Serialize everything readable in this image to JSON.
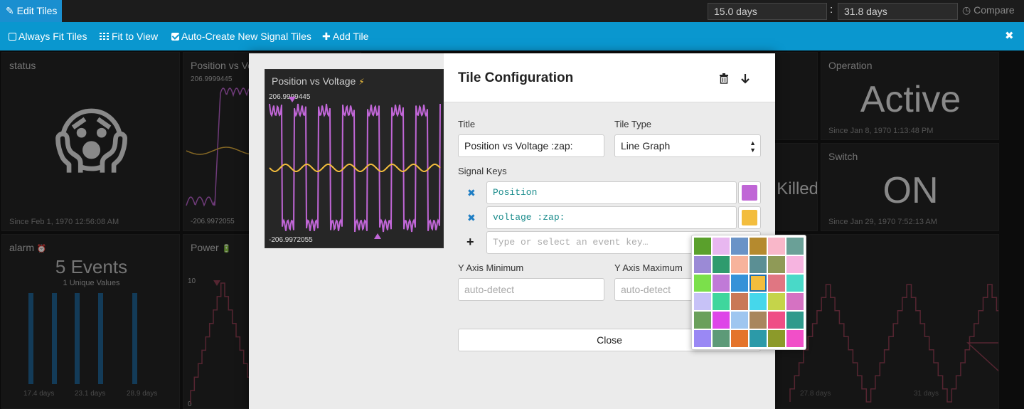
{
  "topbar": {
    "edit_tab_label": "Edit Tiles",
    "range_start": "15.0 days",
    "range_sep": ":",
    "range_end": "31.8 days",
    "compare_label": "Compare"
  },
  "toolbar": {
    "always_fit_label": "Always Fit Tiles",
    "fit_to_view_label": "Fit to View",
    "auto_create_label": "Auto-Create New Signal Tiles",
    "add_tile_label": "Add Tile",
    "close_glyph": "✖"
  },
  "tiles": {
    "status": {
      "title": "status",
      "emoji": "😱",
      "since": "Since Feb 1, 1970 12:56:08 AM"
    },
    "position_bg": {
      "title": "Position vs Vo",
      "ymax": "206.9999445",
      "ymin": "-206.9972055"
    },
    "operation": {
      "title": "Operation",
      "value": "Active",
      "since": "Since Jan 8, 1970 1:13:48 PM"
    },
    "switch": {
      "title": "Switch",
      "value": "ON",
      "since": "Since Jan 29, 1970 7:52:13 AM"
    },
    "killed": {
      "value": "Killed"
    },
    "alarm": {
      "title": "alarm",
      "emoji": "⏰",
      "count": "5 Events",
      "unique": "1 Unique Values",
      "ticks": [
        "17.4 days",
        "23.1 days",
        "28.9 days"
      ]
    },
    "power": {
      "title": "Power",
      "emoji": "🔋",
      "ymax": "10",
      "ymin": "0"
    },
    "bottom_right": {
      "ticks": [
        "27.8 days",
        "31 days"
      ]
    }
  },
  "modal": {
    "title": "Tile Configuration",
    "title_label": "Title",
    "title_value": "Position vs Voltage :zap:",
    "tile_type_label": "Tile Type",
    "tile_type_value": "Line Graph",
    "signal_keys_label": "Signal Keys",
    "signal_keys": [
      {
        "key": "Position",
        "color": "#c066d6"
      },
      {
        "key": "voltage :zap:",
        "color": "#f3bd3d"
      }
    ],
    "add_key_placeholder": "Type or select an event key…",
    "y_min_label": "Y Axis Minimum",
    "y_min_placeholder": "auto-detect",
    "y_max_label": "Y Axis Maximum",
    "y_max_placeholder": "auto-detect",
    "close_label": "Close",
    "preview": {
      "title": "Position vs Voltage",
      "emoji": "⚡",
      "ymax": "206.9999445",
      "ymin": "-206.9972055"
    }
  },
  "palette": {
    "selected_index": 15,
    "colors": [
      "#5aa02c",
      "#e8b7f0",
      "#6a93c7",
      "#b58a2e",
      "#f9b7c9",
      "#6aa097",
      "#9b8ad6",
      "#2e9b6e",
      "#f7b39c",
      "#5b8f94",
      "#8f9a57",
      "#f6b4e0",
      "#7be04b",
      "#c07ad7",
      "#3592d8",
      "#f3bd3d",
      "#e07682",
      "#49d9c8",
      "#c7c2f7",
      "#3fd69d",
      "#c97857",
      "#45d7eb",
      "#c5d44a",
      "#d572c2",
      "#6aa05b",
      "#de46e8",
      "#9ec6f0",
      "#a9865d",
      "#ef4e86",
      "#2f9a8c",
      "#9a88f4",
      "#5d9a78",
      "#e4742c",
      "#2c9aa8",
      "#8c9a2a",
      "#f14fc8"
    ]
  }
}
